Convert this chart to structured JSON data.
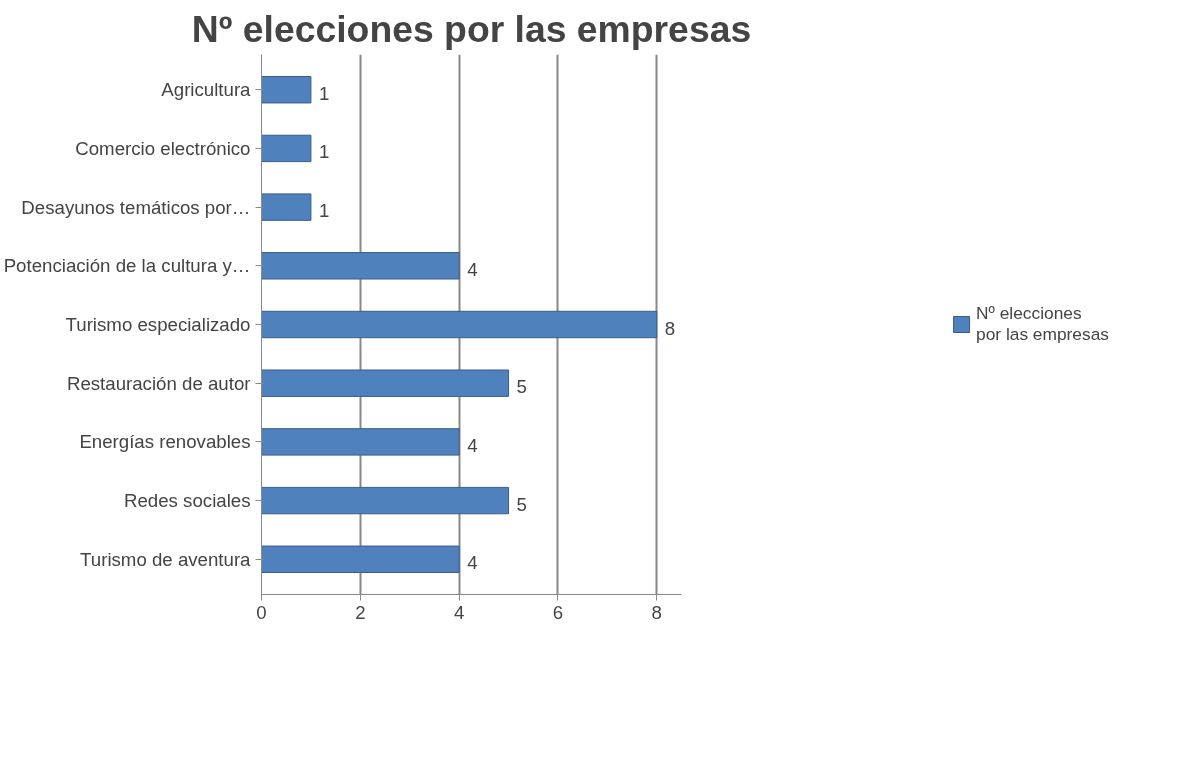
{
  "chart_data": {
    "type": "bar",
    "orientation": "horizontal",
    "title": "Nº elecciones por las empresas",
    "categories": [
      "Agricultura",
      "Comercio electrónico",
      "Desayunos temáticos por…",
      "Potenciación de la cultura y…",
      "Turismo especializado",
      "Restauración de autor",
      "Energías renovables",
      "Redes sociales",
      "Turismo de aventura"
    ],
    "series": [
      {
        "name": "Nº elecciones por las empresas",
        "color": "#4f81bd",
        "values": [
          1,
          1,
          1,
          4,
          8,
          5,
          4,
          5,
          4
        ]
      }
    ],
    "xlim": [
      0,
      8.5
    ],
    "xticks": [
      0,
      2,
      4,
      6,
      8
    ],
    "grid": "x",
    "legend": "right",
    "data_labels": true
  }
}
